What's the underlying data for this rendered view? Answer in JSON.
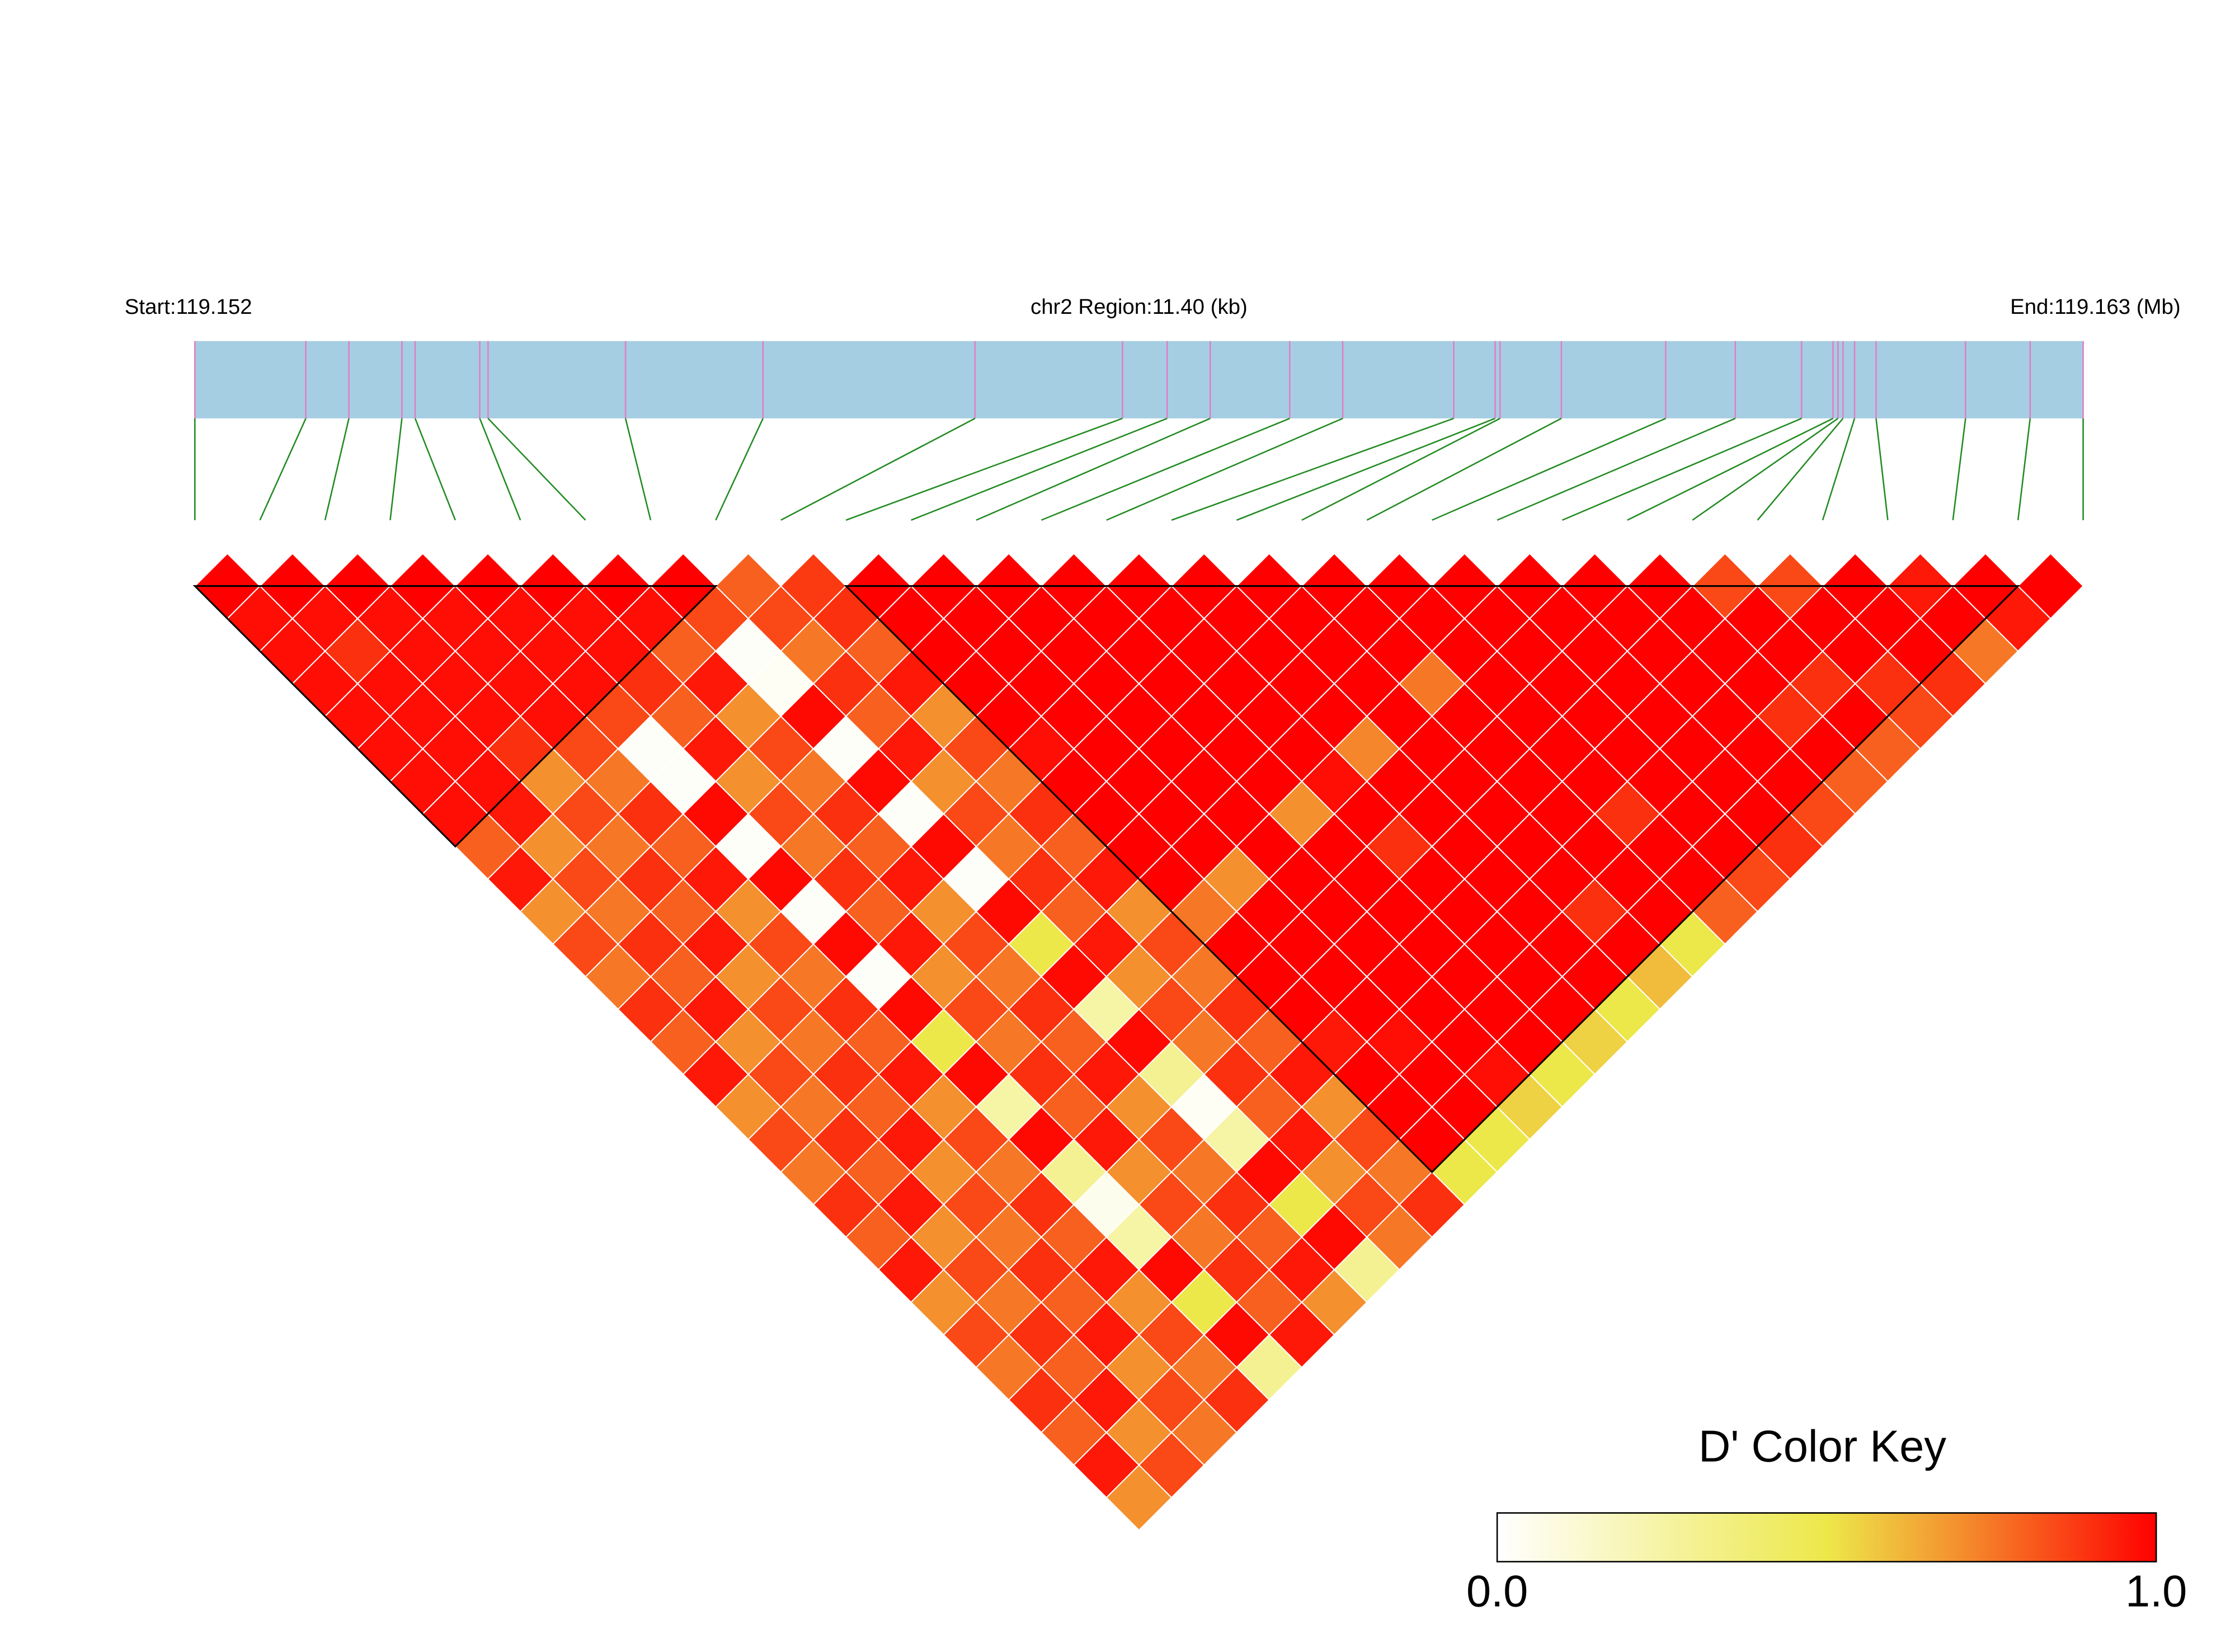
{
  "chart_data": {
    "type": "ldheatmap",
    "start_label": "Start:119.152",
    "region_label": "chr2 Region:11.40 (kb)",
    "end_label": "End:119.163 (Mb)",
    "key_title": "D' Color Key",
    "key_ticks": [
      {
        "value": 0,
        "label": "0.0"
      },
      {
        "value": 1,
        "label": "1.0"
      }
    ],
    "colorscale": [
      [
        0,
        "#FFFFFF"
      ],
      [
        0.5,
        "#EDE84A"
      ],
      [
        0.7,
        "#F4902E"
      ],
      [
        1,
        "#FF0000"
      ]
    ],
    "gene_color": "#A6CEE3",
    "marker_color": "#E17DC6",
    "connector_color": "#228B22",
    "xlim": [
      0,
      11.4
    ],
    "snp_positions_kb": [
      0,
      0.67,
      0.93,
      1.25,
      1.33,
      1.72,
      1.77,
      2.6,
      3.43,
      4.71,
      5.6,
      5.87,
      6.13,
      6.61,
      6.93,
      7.6,
      7.85,
      7.88,
      8.25,
      8.88,
      9.3,
      9.7,
      9.89,
      9.92,
      9.95,
      10.02,
      10.15,
      10.69,
      11.08,
      11.4
    ],
    "ld_blocks": [
      [
        0,
        8
      ],
      [
        10,
        28
      ]
    ],
    "dprime": [
      [
        1,
        0.97,
        0.97,
        0.97,
        0.97,
        0.97,
        0.97,
        0.97,
        0.8,
        0.95,
        0.7,
        0.85,
        0.75,
        0.9,
        0.8,
        0.95,
        0.7,
        0.85,
        0.75,
        0.9,
        0.8,
        0.95,
        0.7,
        0.85,
        0.75,
        0.9,
        0.8,
        0.95,
        0.7
      ],
      [
        1,
        0.97,
        0.9,
        0.97,
        0.97,
        0.97,
        0.97,
        0.95,
        0.7,
        0.85,
        0.75,
        0.9,
        0.8,
        0.95,
        0.7,
        0.85,
        0.75,
        0.9,
        0.8,
        0.95,
        0.7,
        0.85,
        0.75,
        0.9,
        0.8,
        0.95,
        0.7,
        0.85
      ],
      [
        1,
        0.97,
        0.97,
        0.97,
        0.97,
        0.9,
        0.7,
        0.85,
        0.75,
        0.9,
        0.8,
        0.95,
        0.7,
        0.85,
        0.75,
        0.9,
        0.8,
        0.95,
        0.7,
        0.85,
        0.75,
        0.9,
        0.8,
        0.95,
        0.7,
        0.85,
        0.75
      ],
      [
        1,
        0.97,
        0.97,
        0.97,
        0.97,
        0.85,
        0.75,
        0.9,
        0.8,
        0.95,
        0.7,
        0.85,
        0.75,
        0.9,
        0.8,
        0.95,
        0.7,
        0.85,
        0.75,
        0.9,
        0.8,
        0.95,
        0.7,
        0.85,
        0.75,
        0.9
      ],
      [
        1,
        0.97,
        0.97,
        0.97,
        0.85,
        0.02,
        0.02,
        0.98,
        0.02,
        0.98,
        0.02,
        0.98,
        0.02,
        0.98,
        0.5,
        0.98,
        0.25,
        0.98,
        0.3,
        0.05,
        0.25,
        0.98,
        0.5,
        0.98,
        0.3
      ],
      [
        1,
        0.97,
        0.97,
        0.9,
        0.8,
        0.95,
        0.7,
        0.85,
        0.75,
        0.9,
        0.8,
        0.95,
        0.7,
        0.85,
        0.75,
        0.9,
        0.8,
        0.95,
        0.7,
        0.85,
        0.75,
        0.9,
        0.8,
        0.95
      ],
      [
        1,
        0.97,
        0.8,
        0.95,
        0.7,
        0.85,
        0.75,
        0.9,
        0.8,
        0.95,
        0.7,
        0.85,
        0.75,
        0.9,
        0.8,
        0.95,
        0.7,
        0.85,
        0.75,
        0.9,
        0.8,
        0.95,
        0.7
      ],
      [
        1,
        0.85,
        0.02,
        0.03,
        0.98,
        0.02,
        0.98,
        0.02,
        0.98,
        0.02,
        0.98,
        0.5,
        0.98,
        0.25,
        0.98,
        0.3,
        0.03,
        0.25,
        0.98,
        0.5,
        0.98,
        0.3
      ],
      [
        0.8,
        0.85,
        0.75,
        0.9,
        0.8,
        0.95,
        0.7,
        0.85,
        0.75,
        0.9,
        0.8,
        0.95,
        0.7,
        0.85,
        0.75,
        0.9,
        0.8,
        0.95,
        0.7,
        0.85,
        0.75
      ],
      [
        0.88,
        0.9,
        0.8,
        0.95,
        0.7,
        0.85,
        0.75,
        0.9,
        0.8,
        0.95,
        0.7,
        0.85,
        0.75,
        0.9,
        0.8,
        0.95,
        0.7,
        0.85,
        0.75,
        0.9
      ],
      [
        1,
        1,
        1,
        1,
        1,
        0.97,
        1,
        1,
        1,
        1,
        0.75,
        1,
        1,
        1,
        0.95,
        1,
        1,
        1,
        0.5
      ],
      [
        1,
        1,
        1,
        1,
        1,
        1,
        1,
        1,
        1,
        0.7,
        1,
        1,
        1,
        1,
        0.97,
        1,
        1,
        0.5
      ],
      [
        1,
        1,
        1,
        1,
        1,
        1,
        1,
        1,
        1,
        1,
        1,
        1,
        1,
        1,
        1,
        0.97,
        0.55
      ],
      [
        1,
        1,
        1,
        1,
        1,
        1,
        1,
        0.7,
        1,
        1,
        1,
        1,
        1,
        1,
        1,
        0.5
      ],
      [
        1,
        1,
        1,
        1,
        1,
        1,
        0.97,
        1,
        0.9,
        1,
        1,
        1,
        1,
        1,
        0.55
      ],
      [
        1,
        1,
        1,
        1,
        1,
        0.72,
        1,
        1,
        1,
        1,
        1,
        1,
        1,
        0.5
      ],
      [
        1,
        1,
        1,
        1,
        1,
        1,
        1,
        1,
        1,
        1,
        0.9,
        1,
        0.6
      ],
      [
        1,
        1,
        1,
        0.75,
        1,
        1,
        1,
        1,
        1,
        1,
        1,
        0.5
      ],
      [
        1,
        1,
        1,
        1,
        1,
        1,
        1,
        0.9,
        1,
        1,
        0.8
      ],
      [
        1,
        1,
        1,
        1,
        1,
        1,
        1,
        1,
        1,
        0.85
      ],
      [
        1,
        1,
        1,
        1,
        1,
        1,
        1,
        1,
        0.9
      ],
      [
        1,
        1,
        1,
        1,
        1,
        1,
        1,
        0.85
      ],
      [
        1,
        1,
        1,
        1,
        0.9,
        1,
        0.8
      ],
      [
        0.85,
        1,
        1,
        0.9,
        1,
        0.8
      ],
      [
        0.85,
        1,
        1,
        0.9,
        0.85
      ],
      [
        1,
        1,
        1,
        0.9
      ],
      [
        0.95,
        1,
        0.75
      ],
      [
        1,
        0.95
      ],
      [
        1
      ]
    ]
  }
}
